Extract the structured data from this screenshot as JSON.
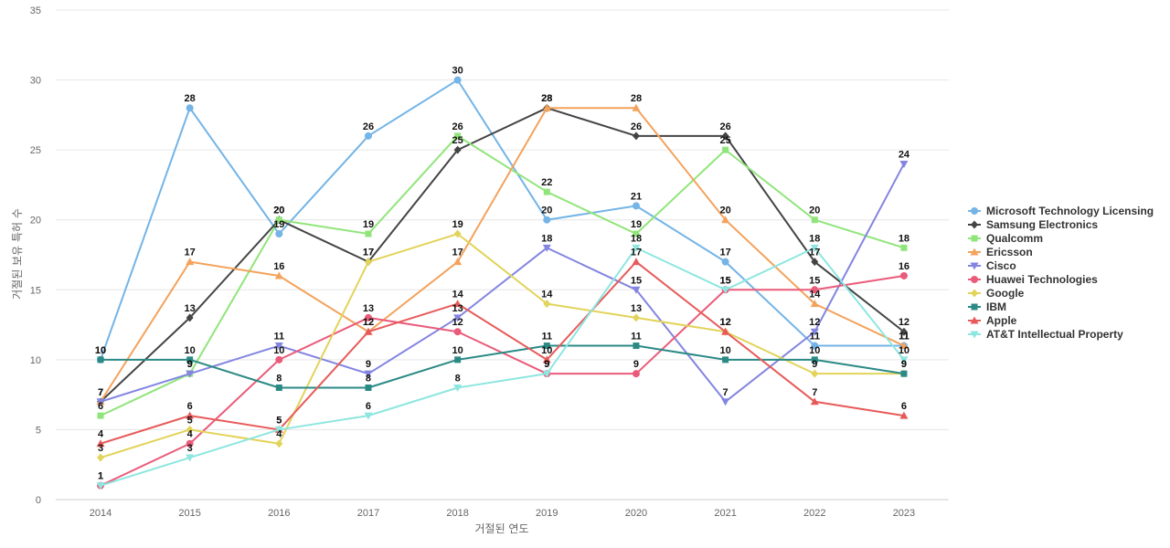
{
  "chart_data": {
    "type": "line",
    "title": "",
    "xlabel": "거절된 연도",
    "ylabel": "거절된 보유 특허 수",
    "categories": [
      "2014",
      "2015",
      "2016",
      "2017",
      "2018",
      "2019",
      "2020",
      "2021",
      "2022",
      "2023"
    ],
    "ylim": [
      0,
      35
    ],
    "yticks": [
      0,
      5,
      10,
      15,
      20,
      25,
      30,
      35
    ],
    "grid": true,
    "legend_position": "right",
    "series": [
      {
        "name": "Microsoft Technology Licensing",
        "color": "#74b4e6",
        "marker": "circle",
        "values": [
          10,
          28,
          19,
          26,
          30,
          20,
          21,
          17,
          11,
          11
        ]
      },
      {
        "name": "Samsung Electronics",
        "color": "#444444",
        "marker": "diamond",
        "values": [
          7,
          13,
          20,
          17,
          25,
          28,
          26,
          26,
          17,
          12
        ]
      },
      {
        "name": "Qualcomm",
        "color": "#90e57a",
        "marker": "square",
        "values": [
          6,
          9,
          20,
          19,
          26,
          22,
          19,
          25,
          20,
          18
        ]
      },
      {
        "name": "Ericsson",
        "color": "#f4a25c",
        "marker": "triangle",
        "values": [
          7,
          17,
          16,
          12,
          17,
          28,
          28,
          20,
          14,
          11
        ]
      },
      {
        "name": "Cisco",
        "color": "#8385e0",
        "marker": "triangle-down",
        "values": [
          7,
          9,
          11,
          9,
          13,
          18,
          15,
          7,
          12,
          24
        ]
      },
      {
        "name": "Huawei Technologies",
        "color": "#ea5b7a",
        "marker": "circle",
        "values": [
          1,
          4,
          10,
          13,
          12,
          9,
          9,
          15,
          15,
          16
        ]
      },
      {
        "name": "Google",
        "color": "#e2d35a",
        "marker": "diamond",
        "values": [
          3,
          5,
          4,
          17,
          19,
          14,
          13,
          12,
          9,
          9
        ]
      },
      {
        "name": "IBM",
        "color": "#2b8a85",
        "marker": "square",
        "values": [
          10,
          10,
          8,
          8,
          10,
          11,
          11,
          10,
          10,
          9
        ]
      },
      {
        "name": "Apple",
        "color": "#e85a5a",
        "marker": "triangle",
        "values": [
          4,
          6,
          5,
          12,
          14,
          10,
          17,
          12,
          7,
          6
        ]
      },
      {
        "name": "AT&T Intellectual Property",
        "color": "#8ee6e0",
        "marker": "triangle-down",
        "values": [
          1,
          3,
          5,
          6,
          8,
          9,
          18,
          15,
          18,
          10
        ]
      }
    ]
  }
}
